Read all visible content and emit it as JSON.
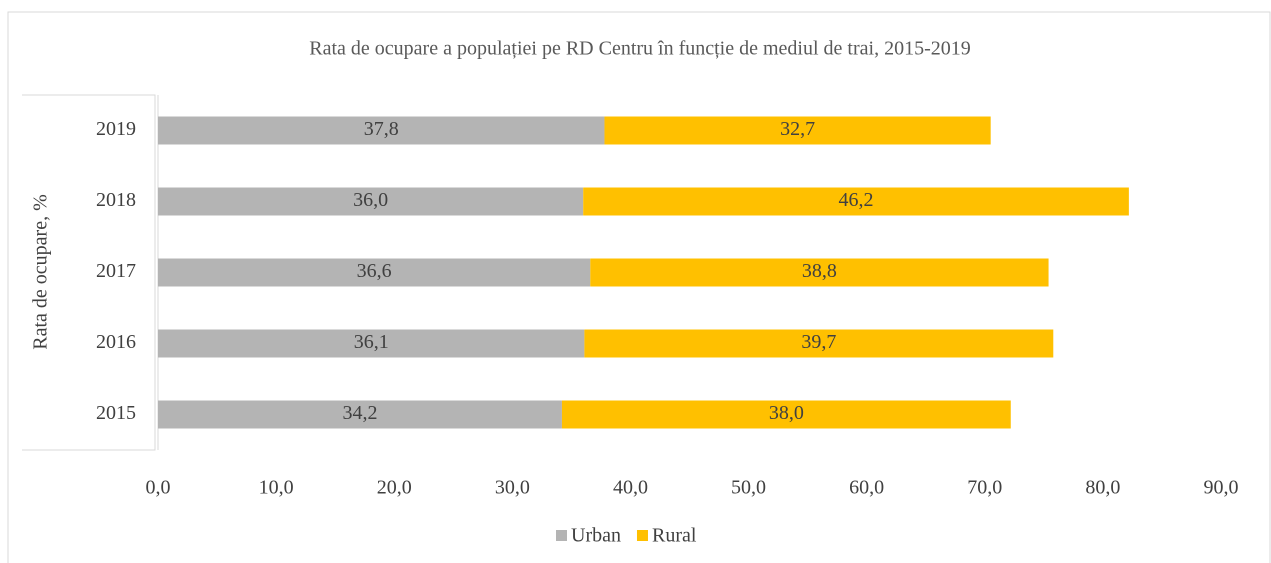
{
  "chart_data": {
    "type": "bar",
    "orientation": "horizontal",
    "stacked": true,
    "title": "Rata de ocupare a populației pe RD Centru în funcție de mediul de trai, 2015-2019",
    "y_label": "Rata de ocupare, %",
    "categories": [
      "2015",
      "2016",
      "2017",
      "2018",
      "2019"
    ],
    "series": [
      {
        "name": "Urban",
        "color": "#b4b4b4",
        "values": [
          34.2,
          36.1,
          36.6,
          36.0,
          37.8
        ],
        "value_labels": [
          "34,2",
          "36,1",
          "36,6",
          "36,0",
          "37,8"
        ]
      },
      {
        "name": "Rural",
        "color": "#ffc000",
        "values": [
          38.0,
          39.7,
          38.8,
          46.2,
          32.7
        ],
        "value_labels": [
          "38,0",
          "39,7",
          "38,8",
          "46,2",
          "32,7"
        ]
      }
    ],
    "xlim": [
      0,
      90
    ],
    "xticks": [
      {
        "value": 0,
        "label": "0,0"
      },
      {
        "value": 10,
        "label": "10,0"
      },
      {
        "value": 20,
        "label": "20,0"
      },
      {
        "value": 30,
        "label": "30,0"
      },
      {
        "value": 40,
        "label": "40,0"
      },
      {
        "value": 50,
        "label": "50,0"
      },
      {
        "value": 60,
        "label": "60,0"
      },
      {
        "value": 70,
        "label": "70,0"
      },
      {
        "value": 80,
        "label": "80,0"
      },
      {
        "value": 90,
        "label": "90,0"
      }
    ],
    "legend": "bottom"
  }
}
